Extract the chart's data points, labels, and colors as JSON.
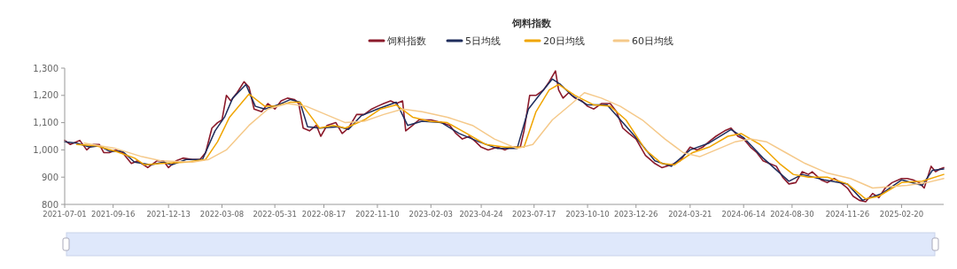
{
  "chart_data": {
    "type": "line",
    "title": "饲料指数",
    "legend": "top",
    "grid": false,
    "marker": "none",
    "line_style": "solid",
    "xlim": [
      "2021-07-01",
      "2025-04-28"
    ],
    "xticks": [
      "2021-07-01",
      "2021-09-16",
      "2021-12-13",
      "2022-03-08",
      "2022-05-31",
      "2022-08-17",
      "2022-11-10",
      "2023-02-03",
      "2023-04-24",
      "2023-07-17",
      "2023-10-10",
      "2023-12-26",
      "2024-03-21",
      "2024-06-14",
      "2024-08-30",
      "2024-11-26",
      "2025-02-20"
    ],
    "ylim": [
      800,
      1300
    ],
    "yticks": [
      800,
      900,
      {
        "value": 1000,
        "label": "1,000"
      },
      {
        "value": 1100,
        "label": "1,100"
      },
      {
        "value": 1200,
        "label": "1,200"
      },
      {
        "value": 1300,
        "label": "1,300"
      }
    ],
    "series": [
      {
        "name": "饲料指数",
        "color": "#8b1a2b",
        "x": [
          "2021-07-01",
          "2021-07-10",
          "2021-07-25",
          "2021-08-05",
          "2021-08-15",
          "2021-08-25",
          "2021-09-01",
          "2021-09-10",
          "2021-09-20",
          "2021-10-01",
          "2021-10-15",
          "2021-10-25",
          "2021-11-10",
          "2021-11-25",
          "2021-12-05",
          "2021-12-13",
          "2021-12-25",
          "2022-01-05",
          "2022-01-20",
          "2022-02-01",
          "2022-02-10",
          "2022-02-20",
          "2022-03-01",
          "2022-03-08",
          "2022-03-15",
          "2022-03-22",
          "2022-04-01",
          "2022-04-12",
          "2022-04-20",
          "2022-04-28",
          "2022-05-10",
          "2022-05-20",
          "2022-05-31",
          "2022-06-10",
          "2022-06-20",
          "2022-07-01",
          "2022-07-08",
          "2022-07-15",
          "2022-07-25",
          "2022-08-05",
          "2022-08-12",
          "2022-08-22",
          "2022-09-05",
          "2022-09-15",
          "2022-09-25",
          "2022-10-08",
          "2022-10-20",
          "2022-11-01",
          "2022-11-10",
          "2022-11-20",
          "2022-12-01",
          "2022-12-10",
          "2022-12-20",
          "2022-12-25",
          "2023-01-05",
          "2023-01-15",
          "2023-02-03",
          "2023-02-20",
          "2023-03-05",
          "2023-03-15",
          "2023-03-25",
          "2023-04-05",
          "2023-04-15",
          "2023-04-24",
          "2023-05-05",
          "2023-05-20",
          "2023-06-01",
          "2023-06-10",
          "2023-06-25",
          "2023-07-01",
          "2023-07-10",
          "2023-07-20",
          "2023-08-01",
          "2023-08-10",
          "2023-08-20",
          "2023-08-25",
          "2023-09-01",
          "2023-09-10",
          "2023-09-20",
          "2023-10-01",
          "2023-10-10",
          "2023-10-20",
          "2023-11-01",
          "2023-11-15",
          "2023-11-25",
          "2023-12-05",
          "2023-12-15",
          "2023-12-26",
          "2024-01-10",
          "2024-01-25",
          "2024-02-05",
          "2024-02-20",
          "2024-03-05",
          "2024-03-21",
          "2024-04-01",
          "2024-04-10",
          "2024-04-20",
          "2024-05-01",
          "2024-05-15",
          "2024-05-25",
          "2024-06-05",
          "2024-06-14",
          "2024-06-25",
          "2024-07-05",
          "2024-07-15",
          "2024-07-25",
          "2024-08-05",
          "2024-08-15",
          "2024-08-25",
          "2024-09-05",
          "2024-09-15",
          "2024-09-25",
          "2024-10-01",
          "2024-10-15",
          "2024-10-25",
          "2024-11-05",
          "2024-11-15",
          "2024-11-26",
          "2024-12-05",
          "2024-12-15",
          "2024-12-25",
          "2025-01-05",
          "2025-01-15",
          "2025-01-25",
          "2025-02-05",
          "2025-02-20",
          "2025-03-01",
          "2025-03-10",
          "2025-03-20",
          "2025-03-28",
          "2025-04-08",
          "2025-04-15",
          "2025-04-22",
          "2025-04-28"
        ],
        "values": [
          1035,
          1020,
          1035,
          1000,
          1020,
          1020,
          990,
          990,
          1000,
          990,
          950,
          960,
          935,
          960,
          960,
          935,
          960,
          970,
          965,
          965,
          990,
          1080,
          1100,
          1110,
          1200,
          1180,
          1210,
          1250,
          1230,
          1150,
          1140,
          1170,
          1150,
          1180,
          1190,
          1185,
          1170,
          1080,
          1070,
          1090,
          1050,
          1090,
          1100,
          1060,
          1080,
          1130,
          1130,
          1150,
          1160,
          1170,
          1180,
          1170,
          1180,
          1070,
          1090,
          1110,
          1110,
          1100,
          1090,
          1060,
          1040,
          1050,
          1030,
          1010,
          1000,
          1010,
          1000,
          1010,
          1010,
          1070,
          1200,
          1200,
          1220,
          1250,
          1290,
          1220,
          1190,
          1210,
          1190,
          1180,
          1160,
          1150,
          1170,
          1170,
          1140,
          1080,
          1060,
          1040,
          980,
          950,
          935,
          945,
          960,
          1010,
          1000,
          1010,
          1030,
          1050,
          1070,
          1080,
          1050,
          1040,
          1010,
          990,
          960,
          950,
          940,
          900,
          875,
          880,
          920,
          910,
          920,
          890,
          880,
          895,
          880,
          860,
          830,
          815,
          810,
          840,
          825,
          860,
          880,
          895,
          895,
          890,
          880,
          860,
          940,
          920,
          930,
          935
        ]
      },
      {
        "name": "5日均线",
        "color": "#1f2d5c",
        "x": [
          "2021-07-01",
          "2021-07-20",
          "2021-08-10",
          "2021-08-25",
          "2021-09-10",
          "2021-10-01",
          "2021-10-20",
          "2021-11-15",
          "2021-12-05",
          "2021-12-18",
          "2022-01-10",
          "2022-02-05",
          "2022-02-25",
          "2022-03-12",
          "2022-03-25",
          "2022-04-15",
          "2022-04-30",
          "2022-05-15",
          "2022-06-05",
          "2022-06-25",
          "2022-07-10",
          "2022-07-22",
          "2022-08-10",
          "2022-09-10",
          "2022-09-25",
          "2022-10-15",
          "2022-11-10",
          "2022-12-10",
          "2022-12-28",
          "2023-01-20",
          "2023-02-20",
          "2023-03-20",
          "2023-04-20",
          "2023-05-20",
          "2023-06-20",
          "2023-07-08",
          "2023-07-25",
          "2023-08-15",
          "2023-08-28",
          "2023-09-15",
          "2023-10-10",
          "2023-11-10",
          "2023-12-05",
          "2023-12-26",
          "2024-01-25",
          "2024-02-20",
          "2024-03-21",
          "2024-04-20",
          "2024-05-25",
          "2024-06-14",
          "2024-07-15",
          "2024-08-25",
          "2024-09-15",
          "2024-10-20",
          "2024-11-26",
          "2024-12-20",
          "2025-01-20",
          "2025-02-20",
          "2025-03-25",
          "2025-04-10",
          "2025-04-28"
        ],
        "values": [
          1030,
          1025,
          1010,
          1015,
          995,
          995,
          955,
          945,
          955,
          945,
          965,
          965,
          1070,
          1120,
          1190,
          1240,
          1160,
          1150,
          1165,
          1185,
          1175,
          1085,
          1080,
          1085,
          1075,
          1125,
          1150,
          1175,
          1090,
          1105,
          1100,
          1060,
          1030,
          1005,
          1005,
          1150,
          1200,
          1260,
          1240,
          1200,
          1165,
          1165,
          1100,
          1045,
          960,
          940,
          1000,
          1025,
          1075,
          1045,
          970,
          885,
          910,
          890,
          875,
          815,
          840,
          890,
          870,
          925,
          930
        ]
      },
      {
        "name": "20日均线",
        "color": "#f0a500",
        "x": [
          "2021-07-20",
          "2021-08-20",
          "2021-09-20",
          "2021-10-20",
          "2021-11-05",
          "2021-12-01",
          "2022-01-10",
          "2022-02-10",
          "2022-03-01",
          "2022-03-20",
          "2022-04-20",
          "2022-05-15",
          "2022-06-01",
          "2022-06-25",
          "2022-07-10",
          "2022-07-25",
          "2022-08-10",
          "2022-09-01",
          "2022-09-20",
          "2022-10-20",
          "2022-11-15",
          "2022-12-10",
          "2023-01-05",
          "2023-02-01",
          "2023-03-01",
          "2023-04-01",
          "2023-05-01",
          "2023-06-01",
          "2023-07-01",
          "2023-07-20",
          "2023-08-10",
          "2023-08-25",
          "2023-09-20",
          "2023-10-20",
          "2023-11-15",
          "2023-12-10",
          "2024-01-10",
          "2024-02-05",
          "2024-02-25",
          "2024-03-25",
          "2024-04-20",
          "2024-05-20",
          "2024-06-10",
          "2024-07-10",
          "2024-08-10",
          "2024-09-01",
          "2024-09-25",
          "2024-10-25",
          "2024-11-26",
          "2024-12-25",
          "2025-01-15",
          "2025-02-20",
          "2025-03-25",
          "2025-04-28"
        ],
        "values": [
          1020,
          1015,
          995,
          970,
          945,
          950,
          955,
          965,
          1030,
          1120,
          1205,
          1160,
          1160,
          1175,
          1175,
          1130,
          1080,
          1090,
          1080,
          1110,
          1150,
          1165,
          1120,
          1105,
          1100,
          1060,
          1020,
          1010,
          1010,
          1140,
          1220,
          1240,
          1200,
          1165,
          1160,
          1110,
          1000,
          950,
          945,
          990,
          1010,
          1050,
          1060,
          1020,
          950,
          910,
          900,
          900,
          875,
          820,
          830,
          880,
          885,
          910
        ]
      },
      {
        "name": "60日均线",
        "color": "#f5c98a",
        "x": [
          "2021-08-01",
          "2021-09-20",
          "2021-11-01",
          "2021-12-01",
          "2022-01-20",
          "2022-02-15",
          "2022-03-15",
          "2022-04-20",
          "2022-05-20",
          "2022-06-20",
          "2022-07-20",
          "2022-08-20",
          "2022-09-20",
          "2022-10-20",
          "2022-11-20",
          "2022-12-20",
          "2023-01-20",
          "2023-03-01",
          "2023-04-10",
          "2023-05-15",
          "2023-06-20",
          "2023-07-15",
          "2023-08-15",
          "2023-09-15",
          "2023-10-05",
          "2023-11-01",
          "2023-12-01",
          "2024-01-05",
          "2024-02-10",
          "2024-03-10",
          "2024-04-05",
          "2024-05-01",
          "2024-06-01",
          "2024-06-25",
          "2024-07-20",
          "2024-08-20",
          "2024-09-20",
          "2024-10-25",
          "2024-12-01",
          "2025-01-05",
          "2025-02-01",
          "2025-03-01",
          "2025-04-01",
          "2025-04-28"
        ],
        "values": [
          1025,
          1005,
          975,
          960,
          955,
          965,
          1000,
          1090,
          1150,
          1170,
          1160,
          1130,
          1100,
          1105,
          1130,
          1150,
          1140,
          1120,
          1090,
          1040,
          1005,
          1020,
          1110,
          1170,
          1210,
          1190,
          1160,
          1110,
          1040,
          990,
          975,
          1000,
          1030,
          1040,
          1030,
          990,
          950,
          915,
          895,
          860,
          865,
          870,
          880,
          895
        ]
      }
    ]
  }
}
